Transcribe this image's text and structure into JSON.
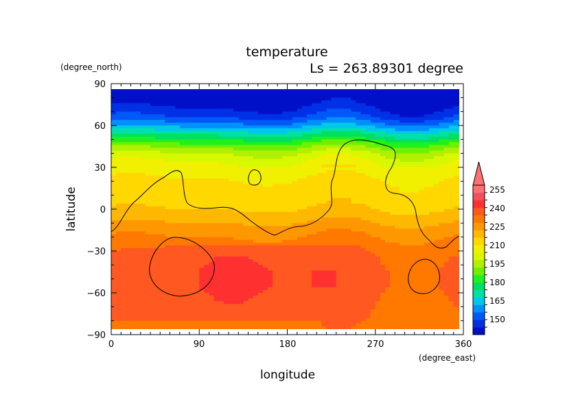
{
  "chart_data": {
    "type": "heatmap",
    "title": "temperature",
    "subtitle": "Ls = 263.89301 degree",
    "xlabel": "longitude",
    "ylabel": "latitude",
    "xunit": "(degree_east)",
    "yunit": "(degree_north)",
    "xlim": [
      0,
      360
    ],
    "ylim": [
      -90,
      90
    ],
    "xticks": [
      "0",
      "90",
      "180",
      "270",
      "360"
    ],
    "yticks": [
      "90",
      "60",
      "30",
      "0",
      "−30",
      "−60",
      "−90"
    ],
    "colorbar": {
      "levels": [
        145,
        150,
        155,
        160,
        165,
        170,
        175,
        180,
        185,
        190,
        195,
        200,
        205,
        210,
        215,
        220,
        225,
        230,
        235,
        240,
        245,
        250,
        255,
        260
      ],
      "labels": [
        "150",
        "165",
        "180",
        "195",
        "210",
        "225",
        "240",
        "255"
      ],
      "colors": [
        "#0010c8",
        "#0030e6",
        "#0058f8",
        "#0090ff",
        "#00c8e8",
        "#00e0a8",
        "#00e060",
        "#20f020",
        "#70f000",
        "#b0f000",
        "#d8f800",
        "#f0f000",
        "#ffd800",
        "#ffb800",
        "#ff9800",
        "#ff7800",
        "#ff5820",
        "#ff3030",
        "#f05060",
        "#ff7070"
      ],
      "extend_top": true
    },
    "zonal_profile": {
      "lat": [
        85,
        78,
        72,
        66,
        60,
        55,
        50,
        45,
        40,
        35,
        30,
        22,
        15,
        5,
        0,
        -8,
        -15,
        -25,
        -35,
        -45,
        -55,
        -65,
        -75,
        -85
      ],
      "temperature": [
        147,
        148,
        150,
        155,
        163,
        172,
        180,
        188,
        195,
        199,
        202,
        205,
        207,
        208,
        210,
        214,
        218,
        222,
        225,
        226,
        226,
        225,
        224,
        223
      ]
    },
    "contour": "topography outline (continental / crater rims)"
  }
}
